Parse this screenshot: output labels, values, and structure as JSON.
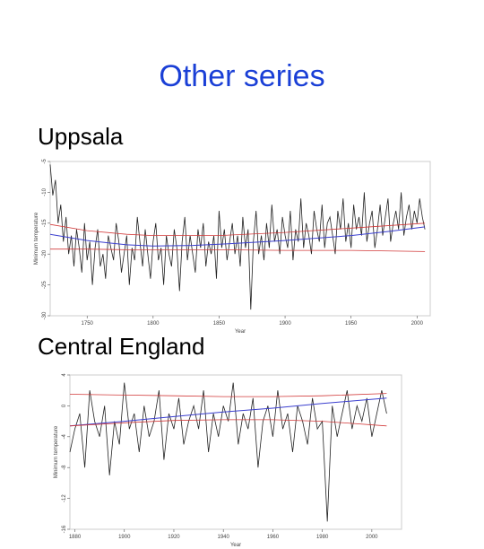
{
  "slide": {
    "title": "Other series",
    "section1": "Uppsala",
    "section2": "Central England"
  },
  "colors": {
    "title": "#1a3fd6",
    "series": "#222222",
    "trend": "#3b3fcf",
    "band": "#d23a3a"
  },
  "chart_data": [
    {
      "type": "line",
      "title": "",
      "xlabel": "Year",
      "ylabel": "Minimum temperature",
      "xlim": [
        1722,
        2010
      ],
      "ylim": [
        -30,
        -5
      ],
      "y_reversed": true,
      "xticks": [
        1750,
        1800,
        1850,
        1900,
        1950,
        2000
      ],
      "yticks": [
        -5,
        -10,
        -15,
        -20,
        -25,
        -30
      ],
      "x": [
        1722,
        1724,
        1726,
        1728,
        1730,
        1732,
        1734,
        1736,
        1738,
        1740,
        1742,
        1744,
        1746,
        1748,
        1750,
        1752,
        1754,
        1756,
        1758,
        1760,
        1762,
        1764,
        1766,
        1768,
        1770,
        1772,
        1774,
        1776,
        1778,
        1780,
        1782,
        1784,
        1786,
        1788,
        1790,
        1792,
        1794,
        1796,
        1798,
        1800,
        1802,
        1804,
        1806,
        1808,
        1810,
        1812,
        1814,
        1816,
        1818,
        1820,
        1822,
        1824,
        1826,
        1828,
        1830,
        1832,
        1834,
        1836,
        1838,
        1840,
        1842,
        1844,
        1846,
        1848,
        1850,
        1852,
        1854,
        1856,
        1858,
        1860,
        1862,
        1864,
        1866,
        1868,
        1870,
        1872,
        1874,
        1876,
        1878,
        1880,
        1882,
        1884,
        1886,
        1888,
        1890,
        1892,
        1894,
        1896,
        1898,
        1900,
        1902,
        1904,
        1906,
        1908,
        1910,
        1912,
        1914,
        1916,
        1918,
        1920,
        1922,
        1924,
        1926,
        1928,
        1930,
        1932,
        1934,
        1936,
        1938,
        1940,
        1942,
        1944,
        1946,
        1948,
        1950,
        1952,
        1954,
        1956,
        1958,
        1960,
        1962,
        1964,
        1966,
        1968,
        1970,
        1972,
        1974,
        1976,
        1978,
        1980,
        1982,
        1984,
        1986,
        1988,
        1990,
        1992,
        1994,
        1996,
        1998,
        2000,
        2002,
        2004,
        2006
      ],
      "series": [
        {
          "name": "",
          "values": [
            -5.5,
            -10.5,
            -8,
            -15,
            -12,
            -18,
            -14,
            -20,
            -17,
            -22,
            -16,
            -19,
            -23,
            -15,
            -21,
            -18,
            -25,
            -19,
            -16,
            -22,
            -20,
            -24,
            -17,
            -19,
            -21,
            -15,
            -18,
            -23,
            -20,
            -17,
            -25,
            -19,
            -21,
            -14,
            -18,
            -22,
            -16,
            -20,
            -24,
            -18,
            -15,
            -21,
            -19,
            -25,
            -17,
            -20,
            -22,
            -16,
            -19,
            -26,
            -18,
            -14,
            -21,
            -17,
            -20,
            -23,
            -16,
            -19,
            -15,
            -22,
            -18,
            -20,
            -17,
            -24,
            -13,
            -19,
            -16,
            -21,
            -18,
            -15,
            -20,
            -17,
            -22,
            -14,
            -19,
            -16,
            -29,
            -18,
            -13,
            -20,
            -17,
            -21,
            -15,
            -19,
            -12,
            -18,
            -16,
            -20,
            -14,
            -17,
            -19,
            -13,
            -21,
            -16,
            -18,
            -11,
            -19,
            -15,
            -17,
            -20,
            -13,
            -16,
            -18,
            -12,
            -19,
            -15,
            -14,
            -17,
            -20,
            -13,
            -16,
            -11,
            -18,
            -15,
            -19,
            -12,
            -16,
            -14,
            -17,
            -10,
            -18,
            -15,
            -13,
            -19,
            -16,
            -12,
            -17,
            -14,
            -11,
            -18,
            -15,
            -13,
            -16,
            -10,
            -17,
            -14,
            -12,
            -16,
            -13,
            -15,
            -11,
            -14,
            -16
          ]
        },
        {
          "name": "",
          "x": [
            1722,
            1750,
            1780,
            1800,
            1830,
            1860,
            1900,
            1950,
            1980,
            2006
          ],
          "values": [
            -16.8,
            -17.8,
            -18.5,
            -18.7,
            -18.6,
            -18.3,
            -17.8,
            -17.0,
            -16.3,
            -15.6
          ]
        },
        {
          "name": "",
          "x": [
            1722,
            1750,
            1780,
            1800,
            1850,
            1900,
            1950,
            2006
          ],
          "values": [
            -15.2,
            -16.2,
            -16.8,
            -17.0,
            -17.0,
            -16.5,
            -15.8,
            -15.0
          ]
        },
        {
          "name": "",
          "x": [
            1722,
            1750,
            1780,
            1800,
            1850,
            1900,
            1950,
            2006
          ],
          "values": [
            -19.2,
            -19.2,
            -19.3,
            -19.3,
            -19.3,
            -19.4,
            -19.4,
            -19.6
          ]
        }
      ]
    },
    {
      "type": "line",
      "title": "",
      "xlabel": "Year",
      "ylabel": "Minimum temperature",
      "xlim": [
        1878,
        2012
      ],
      "ylim": [
        -16,
        4
      ],
      "xticks": [
        1880,
        1900,
        1920,
        1940,
        1960,
        1980,
        2000
      ],
      "yticks": [
        -16,
        -12,
        -8,
        -4,
        0,
        4
      ],
      "x": [
        1878,
        1880,
        1882,
        1884,
        1886,
        1888,
        1890,
        1892,
        1894,
        1896,
        1898,
        1900,
        1902,
        1904,
        1906,
        1908,
        1910,
        1912,
        1914,
        1916,
        1918,
        1920,
        1922,
        1924,
        1926,
        1928,
        1930,
        1932,
        1934,
        1936,
        1938,
        1940,
        1942,
        1944,
        1946,
        1948,
        1950,
        1952,
        1954,
        1956,
        1958,
        1960,
        1962,
        1964,
        1966,
        1968,
        1970,
        1972,
        1974,
        1976,
        1978,
        1980,
        1982,
        1984,
        1986,
        1988,
        1990,
        1992,
        1994,
        1996,
        1998,
        2000,
        2002,
        2004,
        2006
      ],
      "series": [
        {
          "name": "",
          "values": [
            -6,
            -3,
            -1,
            -8,
            2,
            -2,
            -4,
            0,
            -9,
            -2,
            -5,
            3,
            -3,
            -1,
            -6,
            0,
            -4,
            -2,
            2,
            -7,
            -1,
            -3,
            1,
            -5,
            -2,
            0,
            -3,
            2,
            -6,
            -1,
            -4,
            0,
            -2,
            3,
            -5,
            -1,
            -3,
            1,
            -8,
            -2,
            0,
            -4,
            2,
            -3,
            -1,
            -6,
            0,
            -2,
            -5,
            1,
            -3,
            -2,
            -15,
            0,
            -4,
            -1,
            2,
            -3,
            0,
            -2,
            1,
            -4,
            -1,
            2,
            -1
          ]
        },
        {
          "name": "",
          "x": [
            1878,
            1900,
            1920,
            1940,
            1960,
            1980,
            2006
          ],
          "values": [
            -2.6,
            -2.0,
            -1.4,
            -0.8,
            -0.3,
            0.3,
            1.0
          ]
        },
        {
          "name": "",
          "x": [
            1878,
            1900,
            1920,
            1940,
            1960,
            1980,
            2006
          ],
          "values": [
            1.5,
            1.4,
            1.3,
            1.2,
            1.2,
            1.3,
            1.6
          ]
        },
        {
          "name": "",
          "x": [
            1878,
            1900,
            1920,
            1940,
            1960,
            1980,
            2006
          ],
          "values": [
            -2.6,
            -2.2,
            -1.9,
            -1.8,
            -1.8,
            -2.0,
            -2.6
          ]
        }
      ]
    }
  ]
}
